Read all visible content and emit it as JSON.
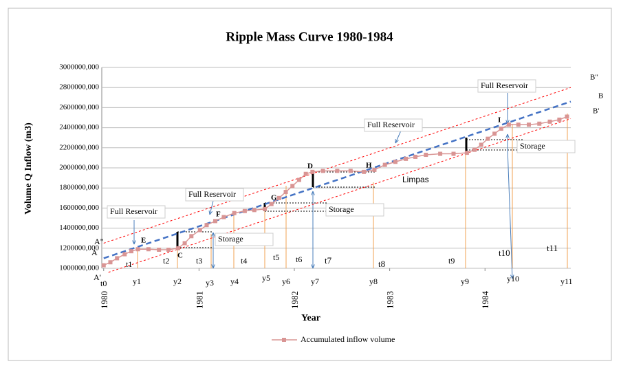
{
  "chart_data": {
    "type": "line",
    "title": "Ripple Mass Curve 1980-1984",
    "x_label": "Year",
    "y_label": "Volume Q Inflow (m3)",
    "xlim": [
      1979.98,
      1984.9
    ],
    "xticks": [
      1980,
      1981,
      1982,
      1983,
      1984
    ],
    "ylim": [
      1000000,
      3000000
    ],
    "yticks": [
      {
        "value": 1000000,
        "label": "1000000,000"
      },
      {
        "value": 1200000,
        "label": "1200000,000"
      },
      {
        "value": 1400000,
        "label": "1400000,000"
      },
      {
        "value": 1600000,
        "label": "1600000,000"
      },
      {
        "value": 1800000,
        "label": "1800000,000"
      },
      {
        "value": 2000000,
        "label": "2000000,000"
      },
      {
        "value": 2200000,
        "label": "2200000,000"
      },
      {
        "value": 2400000,
        "label": "2400000,000"
      },
      {
        "value": 2600000,
        "label": "2600000,000"
      },
      {
        "value": 2800000,
        "label": "2800000,000"
      },
      {
        "value": 3000000,
        "label": "3000000,000"
      }
    ],
    "grid": true,
    "series": [
      {
        "name": "Accumulated inflow volume",
        "color": "#d99594",
        "x": [
          1980.0,
          1980.07,
          1980.14,
          1980.22,
          1980.29,
          1980.36,
          1980.47,
          1980.58,
          1980.68,
          1980.78,
          1980.85,
          1980.92,
          1981.01,
          1981.08,
          1981.17,
          1981.26,
          1981.37,
          1981.48,
          1981.58,
          1981.69,
          1981.76,
          1981.84,
          1981.91,
          1981.98,
          1982.05,
          1982.12,
          1982.19,
          1982.3,
          1982.45,
          1982.59,
          1982.73,
          1982.84,
          1982.95,
          1983.06,
          1983.17,
          1983.27,
          1983.38,
          1983.53,
          1983.67,
          1983.81,
          1983.89,
          1983.96,
          1984.03,
          1984.1,
          1984.17,
          1984.25,
          1984.35,
          1984.46,
          1984.57,
          1984.68,
          1984.78,
          1984.86
        ],
        "values": [
          1030000,
          1060000,
          1100000,
          1140000,
          1170000,
          1190000,
          1190000,
          1185000,
          1185000,
          1200000,
          1250000,
          1320000,
          1380000,
          1430000,
          1470000,
          1510000,
          1550000,
          1570000,
          1580000,
          1590000,
          1640000,
          1700000,
          1760000,
          1820000,
          1880000,
          1940000,
          1960000,
          1970000,
          1970000,
          1970000,
          1960000,
          1980000,
          2030000,
          2060000,
          2090000,
          2110000,
          2130000,
          2140000,
          2140000,
          2150000,
          2180000,
          2230000,
          2290000,
          2340000,
          2390000,
          2430000,
          2430000,
          2430000,
          2440000,
          2460000,
          2480000,
          2510000
        ]
      }
    ],
    "lines": [
      {
        "name": "B",
        "color": "#4472c4",
        "x": [
          1980.0,
          1984.9
        ],
        "values": [
          1100000,
          2660000
        ]
      },
      {
        "name": "B\"",
        "color": "#ff0000",
        "x": [
          1980.0,
          1984.9
        ],
        "values": [
          1250000,
          2800000
        ]
      },
      {
        "name": "B'",
        "color": "#ff0000",
        "x": [
          1980.05,
          1984.9
        ],
        "values": [
          960000,
          2490000
        ]
      }
    ],
    "annotations": [
      "A\"",
      "A",
      "A'",
      "t0",
      "t1",
      "t2",
      "t3",
      "t4",
      "t5",
      "t6",
      "t7",
      "t8",
      "t9",
      "t10",
      "t11",
      "y1",
      "y2",
      "y3",
      "y4",
      "y5",
      "y6",
      "y7",
      "y8",
      "y9",
      "y10",
      "y11",
      "E",
      "C",
      "F",
      "G",
      "D",
      "H",
      "I",
      "Full Reservoir",
      "Full Reservoir",
      "Full Reservoir",
      "Full Reservoir",
      "Storage",
      "Storage",
      "Storage",
      "Limpas"
    ]
  }
}
